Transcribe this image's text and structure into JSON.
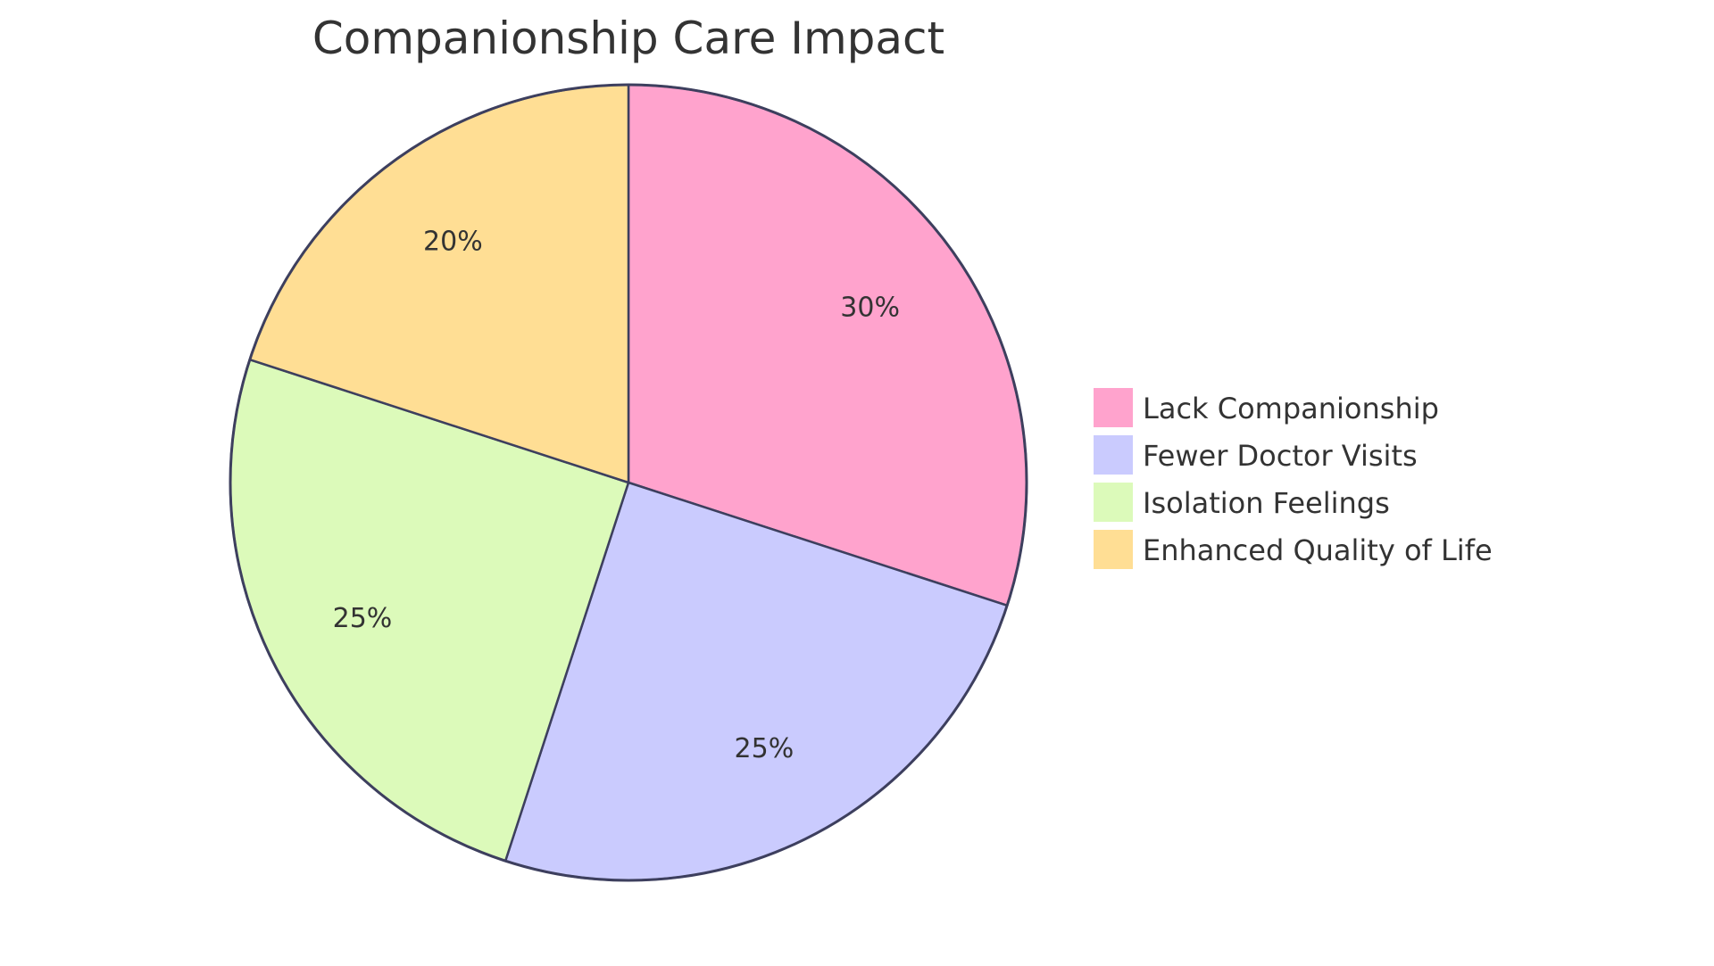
{
  "chart_data": {
    "type": "pie",
    "title": "Companionship Care Impact",
    "slices": [
      {
        "label": "Lack Companionship",
        "value": 30,
        "display": "30%",
        "color": "#FFA3CD"
      },
      {
        "label": "Fewer Doctor Visits",
        "value": 25,
        "display": "25%",
        "color": "#CACBFE"
      },
      {
        "label": "Isolation Feelings",
        "value": 25,
        "display": "25%",
        "color": "#DCFABA"
      },
      {
        "label": "Enhanced Quality of Life",
        "value": 20,
        "display": "20%",
        "color": "#FFDE94"
      }
    ],
    "start": "top",
    "direction": "clockwise",
    "legend_position": "right",
    "stroke_color": "#3D3F5E"
  }
}
